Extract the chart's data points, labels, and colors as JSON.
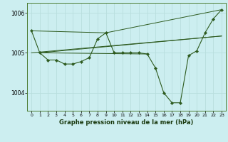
{
  "title": "Graphe pression niveau de la mer (hPa)",
  "background_color": "#cceef0",
  "grid_color": "#b8dede",
  "line_color": "#2d5a1e",
  "marker_color": "#2d5a1e",
  "xlim": [
    -0.5,
    23.5
  ],
  "ylim": [
    1003.55,
    1006.25
  ],
  "yticks": [
    1004,
    1005,
    1006
  ],
  "xticks": [
    0,
    1,
    2,
    3,
    4,
    5,
    6,
    7,
    8,
    9,
    10,
    11,
    12,
    13,
    14,
    15,
    16,
    17,
    18,
    19,
    20,
    21,
    22,
    23
  ],
  "main_series": {
    "x": [
      0,
      1,
      2,
      3,
      4,
      5,
      6,
      7,
      8,
      9,
      10,
      11,
      12,
      13,
      14,
      15,
      16,
      17,
      18,
      19,
      20,
      21,
      22,
      23
    ],
    "y": [
      1005.55,
      1005.0,
      1004.82,
      1004.82,
      1004.72,
      1004.72,
      1004.78,
      1004.88,
      1005.35,
      1005.5,
      1005.0,
      1005.0,
      1005.0,
      1005.0,
      1004.97,
      1004.62,
      1004.0,
      1003.75,
      1003.75,
      1004.93,
      1005.05,
      1005.5,
      1005.85,
      1006.08
    ]
  },
  "extra_lines": [
    {
      "x": [
        0,
        23
      ],
      "y": [
        1005.0,
        1005.42
      ]
    },
    {
      "x": [
        1,
        14
      ],
      "y": [
        1005.0,
        1004.97
      ]
    },
    {
      "x": [
        1,
        23
      ],
      "y": [
        1005.0,
        1005.42
      ]
    },
    {
      "x": [
        0,
        9,
        23
      ],
      "y": [
        1005.55,
        1005.5,
        1006.08
      ]
    }
  ]
}
